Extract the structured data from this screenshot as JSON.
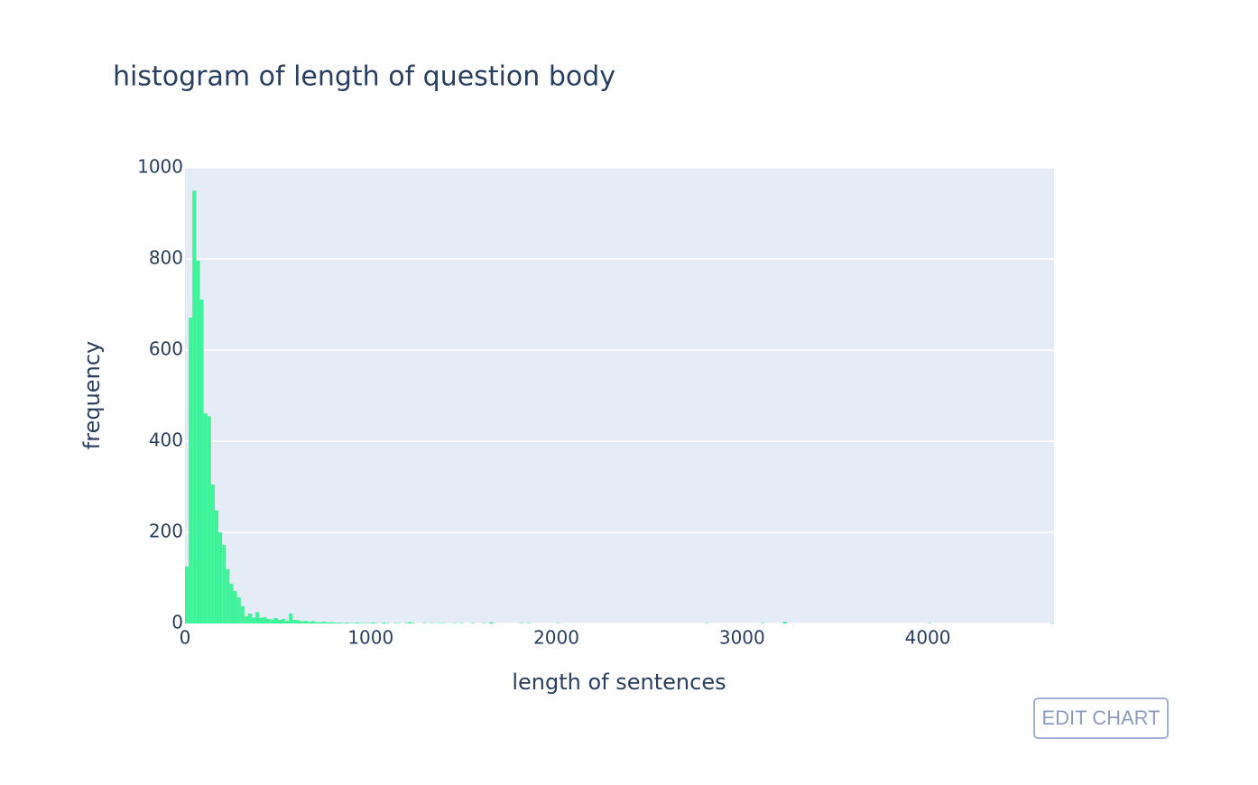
{
  "chart_data": {
    "type": "histogram",
    "title": "histogram of length of question body",
    "x_label": "length of sentences",
    "y_label": "frequency",
    "color": "#3ef39a",
    "grid": true,
    "xlim": [
      0,
      4680
    ],
    "ylim": [
      0,
      1000
    ],
    "xticks": [
      0,
      1000,
      2000,
      3000,
      4000
    ],
    "yticks": [
      0,
      200,
      400,
      600,
      800,
      1000
    ],
    "bins": [
      0,
      20,
      40,
      60,
      80,
      100,
      120,
      140,
      160,
      180,
      200,
      220,
      240,
      260,
      280,
      300,
      320,
      340,
      360,
      380,
      400,
      420,
      440,
      460,
      480,
      500,
      520,
      540,
      560,
      580,
      600,
      620,
      640,
      660,
      680,
      700,
      720,
      740,
      760,
      780,
      800,
      820,
      840,
      860,
      880,
      900,
      920,
      940,
      960,
      980,
      1000,
      1020,
      1040,
      1060,
      1080,
      1100,
      1120,
      1140,
      1160,
      1180,
      1200,
      1220,
      1240,
      1260,
      1280,
      1300,
      1320,
      1340,
      1360,
      1380,
      1400,
      1420,
      1440,
      1460,
      1480,
      1500,
      1520,
      1540,
      1560,
      1580,
      1600,
      1620,
      1640,
      1660,
      1680,
      1700,
      1720,
      1740,
      1760,
      1780,
      1800,
      1820,
      1840,
      1860,
      1880,
      1900,
      1920,
      1940,
      1960,
      1980,
      2000,
      2020,
      2040,
      2060,
      2080,
      2100,
      2120,
      2140,
      2160,
      2180,
      2200,
      2220,
      2240,
      2260,
      2280,
      2300,
      2320,
      2340,
      2360,
      2380,
      2400,
      2420,
      2440,
      2460,
      2480,
      2500,
      2520,
      2540,
      2560,
      2580,
      2600,
      2620,
      2640,
      2660,
      2680,
      2700,
      2720,
      2740,
      2760,
      2780,
      2800,
      2820,
      2840,
      2860,
      2880,
      2900,
      2920,
      2940,
      2960,
      2980,
      3000,
      3020,
      3040,
      3060,
      3080,
      3100,
      3120,
      3140,
      3160,
      3180,
      3200,
      3220,
      3240,
      3260,
      3280,
      3300,
      3320,
      3340,
      3360,
      3380,
      3400,
      3420,
      3440,
      3460,
      3480,
      3500,
      3520,
      3540,
      3560,
      3580,
      3600,
      3620,
      3640,
      3660,
      3680,
      3700,
      3720,
      3740,
      3760,
      3780,
      3800,
      3820,
      3840,
      3860,
      3880,
      3900,
      3920,
      3940,
      3960,
      3980,
      4000,
      4020,
      4040,
      4060,
      4080,
      4100,
      4120,
      4140,
      4160,
      4180,
      4200,
      4220,
      4240,
      4260,
      4280,
      4300,
      4320,
      4340,
      4360,
      4380,
      4400,
      4420,
      4440,
      4460,
      4480,
      4500,
      4520,
      4540,
      4560,
      4580,
      4600,
      4620,
      4640,
      4660,
      4680
    ],
    "values": [
      125,
      671,
      950,
      796,
      711,
      461,
      455,
      305,
      248,
      200,
      172,
      119,
      87,
      71,
      57,
      38,
      16,
      22,
      13,
      25,
      12,
      14,
      10,
      9,
      12,
      8,
      10,
      6,
      22,
      8,
      7,
      5,
      6,
      4,
      5,
      3,
      3,
      4,
      2,
      3,
      2,
      2,
      1,
      2,
      1,
      1,
      2,
      1,
      1,
      1,
      2,
      1,
      0,
      2,
      1,
      0,
      1,
      1,
      0,
      1,
      3,
      1,
      0,
      0,
      1,
      0,
      1,
      0,
      1,
      1,
      0,
      0,
      1,
      0,
      1,
      0,
      0,
      1,
      0,
      0,
      1,
      0,
      3,
      0,
      0,
      0,
      0,
      0,
      0,
      0,
      1,
      0,
      1,
      0,
      0,
      0,
      0,
      0,
      0,
      0,
      1,
      0,
      0,
      0,
      0,
      0,
      0,
      0,
      0,
      0,
      0,
      0,
      0,
      0,
      0,
      0,
      0,
      0,
      0,
      0,
      0,
      0,
      0,
      0,
      0,
      0,
      0,
      0,
      0,
      0,
      0,
      0,
      0,
      0,
      0,
      0,
      0,
      0,
      0,
      0,
      1,
      0,
      0,
      0,
      0,
      0,
      0,
      0,
      0,
      0,
      0,
      0,
      0,
      0,
      0,
      1,
      0,
      0,
      0,
      0,
      0,
      4,
      0,
      0,
      0,
      0,
      0,
      0,
      0,
      0,
      0,
      0,
      0,
      0,
      0,
      0,
      0,
      0,
      0,
      0,
      0,
      0,
      0,
      0,
      0,
      0,
      0,
      0,
      0,
      0,
      0,
      0,
      0,
      0,
      0,
      0,
      0,
      0,
      0,
      0,
      1,
      0,
      0,
      0,
      0,
      0,
      0,
      0,
      0,
      0,
      0,
      0,
      0,
      0,
      0,
      0,
      0,
      0,
      0,
      0,
      0,
      0,
      0,
      0,
      0,
      0,
      0,
      0,
      0,
      0,
      0,
      0,
      0,
      1
    ]
  },
  "edit_button": "EDIT CHART"
}
